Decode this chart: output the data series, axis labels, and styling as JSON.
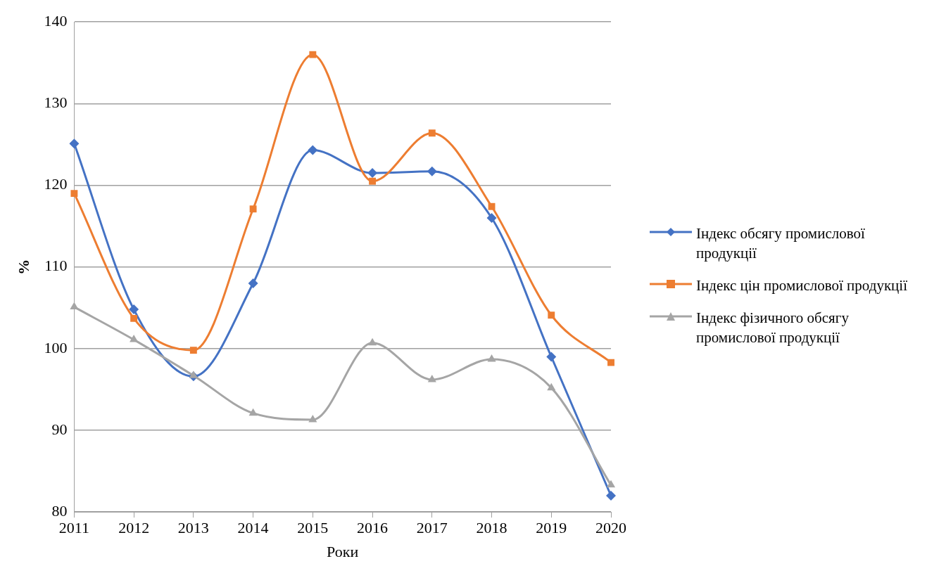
{
  "chart_data": {
    "type": "line",
    "xlabel": "Роки",
    "ylabel": "%",
    "categories": [
      "2011",
      "2012",
      "2013",
      "2014",
      "2015",
      "2016",
      "2017",
      "2018",
      "2019",
      "2020"
    ],
    "series": [
      {
        "name": "Індекс обсягу промислової продукції",
        "color": "#4472c4",
        "marker": "diamond",
        "values": [
          125.1,
          104.8,
          96.6,
          108.0,
          124.3,
          121.5,
          121.7,
          116.0,
          99.0,
          82.0
        ]
      },
      {
        "name": "Індекс цін промислової продукції",
        "color": "#ed7d31",
        "marker": "square",
        "values": [
          119.0,
          103.7,
          99.8,
          117.1,
          136.0,
          120.5,
          126.4,
          117.4,
          104.1,
          98.3
        ]
      },
      {
        "name": "Індекс фізичного обсягу промислової продукції",
        "color": "#a5a5a5",
        "marker": "triangle",
        "values": [
          105.1,
          101.1,
          96.7,
          92.1,
          91.3,
          100.7,
          96.2,
          98.7,
          95.2,
          83.3
        ]
      }
    ],
    "ylim": [
      80,
      140
    ],
    "yticks": [
      80,
      90,
      100,
      110,
      120,
      130,
      140
    ],
    "grid": "y",
    "legend": "right",
    "line_style": "solid"
  }
}
